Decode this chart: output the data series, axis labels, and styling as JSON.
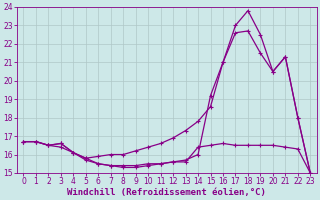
{
  "xlabel": "Windchill (Refroidissement éolien,°C)",
  "background_color": "#cde8e8",
  "line_color": "#880088",
  "grid_color": "#b0c8c8",
  "xlim": [
    -0.5,
    23.5
  ],
  "ylim": [
    15,
    24
  ],
  "xticks": [
    0,
    1,
    2,
    3,
    4,
    5,
    6,
    7,
    8,
    9,
    10,
    11,
    12,
    13,
    14,
    15,
    16,
    17,
    18,
    19,
    20,
    21,
    22,
    23
  ],
  "yticks": [
    15,
    16,
    17,
    18,
    19,
    20,
    21,
    22,
    23,
    24
  ],
  "line1_x": [
    0,
    1,
    2,
    3,
    4,
    5,
    6,
    7,
    8,
    9,
    10,
    11,
    12,
    13,
    14,
    15,
    16,
    17,
    18,
    19,
    20,
    21,
    22,
    23
  ],
  "line1_y": [
    16.7,
    16.7,
    16.5,
    16.6,
    16.1,
    15.8,
    15.5,
    15.4,
    15.4,
    15.4,
    15.5,
    15.5,
    15.6,
    15.6,
    16.4,
    16.5,
    16.6,
    16.5,
    16.5,
    16.5,
    16.5,
    16.4,
    16.3,
    15.0
  ],
  "line2_x": [
    0,
    1,
    2,
    3,
    4,
    5,
    6,
    7,
    8,
    9,
    10,
    11,
    12,
    13,
    14,
    15,
    16,
    17,
    18,
    19,
    20,
    21,
    22,
    23
  ],
  "line2_y": [
    16.7,
    16.7,
    16.5,
    16.6,
    16.1,
    15.8,
    15.9,
    16.0,
    16.0,
    16.2,
    16.4,
    16.6,
    16.9,
    17.3,
    17.8,
    18.6,
    21.0,
    22.6,
    22.7,
    21.5,
    20.5,
    21.3,
    18.0,
    15.0
  ],
  "line3_x": [
    0,
    1,
    2,
    3,
    4,
    5,
    6,
    7,
    8,
    9,
    10,
    11,
    12,
    13,
    14,
    15,
    16,
    17,
    18,
    19,
    20,
    21,
    22,
    23
  ],
  "line3_y": [
    16.7,
    16.7,
    16.5,
    16.4,
    16.1,
    15.7,
    15.5,
    15.4,
    15.3,
    15.3,
    15.4,
    15.5,
    15.6,
    15.7,
    16.0,
    19.2,
    21.0,
    23.0,
    23.8,
    22.5,
    20.5,
    21.3,
    18.0,
    15.0
  ],
  "marker": "+",
  "markersize": 3,
  "linewidth": 0.9,
  "tick_fontsize": 5.5,
  "label_fontsize": 6.5
}
